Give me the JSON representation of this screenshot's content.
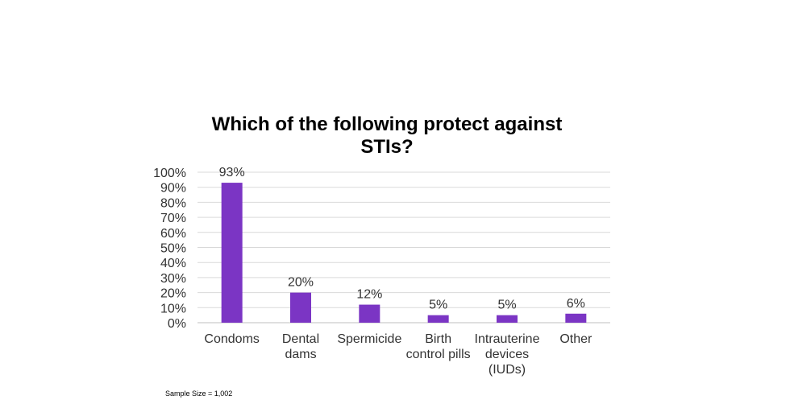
{
  "chart_data": {
    "type": "bar",
    "title": [
      "Which of the following protect against",
      "STIs?"
    ],
    "categories": [
      [
        "Condoms"
      ],
      [
        "Dental",
        "dams"
      ],
      [
        "Spermicide"
      ],
      [
        "Birth",
        "control pills"
      ],
      [
        "Intrauterine",
        "devices",
        "(IUDs)"
      ],
      [
        "Other"
      ]
    ],
    "values": [
      93,
      20,
      12,
      5,
      5,
      6
    ],
    "data_labels": [
      "93%",
      "20%",
      "12%",
      "5%",
      "5%",
      "6%"
    ],
    "ylim": [
      0,
      100
    ],
    "yticks": [
      0,
      10,
      20,
      30,
      40,
      50,
      60,
      70,
      80,
      90,
      100
    ],
    "ytick_labels": [
      "0%",
      "10%",
      "20%",
      "30%",
      "40%",
      "50%",
      "60%",
      "70%",
      "80%",
      "90%",
      "100%"
    ],
    "xlabel": "",
    "ylabel": "",
    "grid": true,
    "legend": "none",
    "bar_color": "#7B35C4",
    "grid_color": "#D9D9D9"
  },
  "footnote": "Sample Size = 1,002"
}
